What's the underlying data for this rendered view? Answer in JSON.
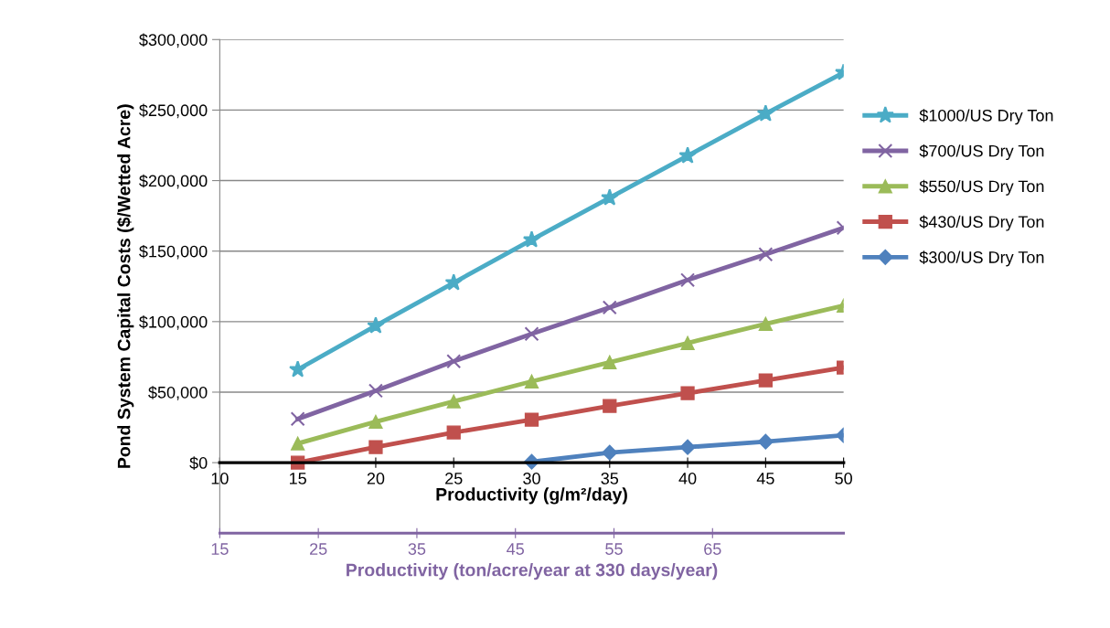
{
  "chart_data": {
    "type": "line",
    "xlabel": "Productivity (g/m²/day)",
    "x2label": "Productivity (ton/acre/year at 330 days/year)",
    "ylabel": "Pond System Capital Costs ($/Wetted Acre)",
    "x": [
      15,
      20,
      25,
      30,
      35,
      40,
      45,
      50
    ],
    "xlim": [
      10,
      50
    ],
    "xticks": [
      10,
      15,
      20,
      25,
      30,
      35,
      40,
      45,
      50
    ],
    "x2lim": [
      15,
      78.3
    ],
    "x2ticks": [
      15,
      25,
      35,
      45,
      55,
      65
    ],
    "ylim": [
      -50000,
      300000
    ],
    "yticks": [
      {
        "value": 0,
        "label": "$0"
      },
      {
        "value": 50000,
        "label": "$50,000"
      },
      {
        "value": 100000,
        "label": "$100,000"
      },
      {
        "value": 150000,
        "label": "$150,000"
      },
      {
        "value": 200000,
        "label": "$200,000"
      },
      {
        "value": 250000,
        "label": "$250,000"
      },
      {
        "value": 300000,
        "label": "$300,000"
      }
    ],
    "grid": "y",
    "legend": "right",
    "series": [
      {
        "name": "$1000/US Dry Ton",
        "color": "#4bacc6",
        "marker": "star",
        "values": [
          66000,
          97000,
          127600,
          158000,
          187800,
          217600,
          247400,
          276600
        ]
      },
      {
        "name": "$700/US Dry Ton",
        "color": "#8064a2",
        "marker": "cross",
        "values": [
          31000,
          51000,
          71900,
          91300,
          110000,
          129500,
          147700,
          166500
        ]
      },
      {
        "name": "$550/US Dry Ton",
        "color": "#9bbb59",
        "marker": "triangle",
        "values": [
          13600,
          29000,
          43400,
          57600,
          71200,
          84800,
          98400,
          111400
        ]
      },
      {
        "name": "$430/US Dry Ton",
        "color": "#c0504d",
        "marker": "square",
        "values": [
          0,
          11000,
          21400,
          30400,
          40200,
          49200,
          58300,
          67400
        ]
      },
      {
        "name": "$300/US Dry Ton",
        "color": "#4f81bd",
        "marker": "diamond",
        "values": [
          null,
          null,
          null,
          600,
          7100,
          11000,
          14900,
          19400
        ]
      }
    ]
  }
}
